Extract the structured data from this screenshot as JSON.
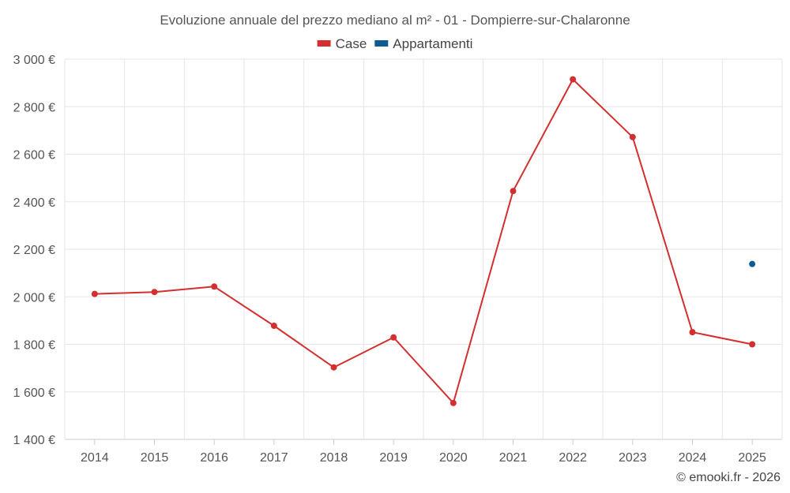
{
  "chart_data": {
    "type": "line",
    "title": "Evoluzione annuale del prezzo mediano al m² - 01 - Dompierre-sur-Chalaronne",
    "categories": [
      "2014",
      "2015",
      "2016",
      "2017",
      "2018",
      "2019",
      "2020",
      "2021",
      "2022",
      "2023",
      "2024",
      "2025"
    ],
    "series": [
      {
        "name": "Case",
        "color": "#d32f2f",
        "values": [
          2012,
          2020,
          2043,
          1878,
          1703,
          1829,
          1553,
          2445,
          2915,
          2672,
          1851,
          1800
        ]
      },
      {
        "name": "Appartamenti",
        "color": "#0d5c91",
        "values": [
          null,
          null,
          null,
          null,
          null,
          null,
          null,
          null,
          null,
          null,
          null,
          2138
        ]
      }
    ],
    "y_ticks": [
      "1 400 €",
      "1 600 €",
      "1 800 €",
      "2 000 €",
      "2 200 €",
      "2 400 €",
      "2 600 €",
      "2 800 €",
      "3 000 €"
    ],
    "y_tick_values": [
      1400,
      1600,
      1800,
      2000,
      2200,
      2400,
      2600,
      2800,
      3000
    ],
    "ylim": [
      1400,
      3000
    ],
    "grid": true,
    "legend_position": "top-center"
  },
  "credit": "© emooki.fr - 2026"
}
